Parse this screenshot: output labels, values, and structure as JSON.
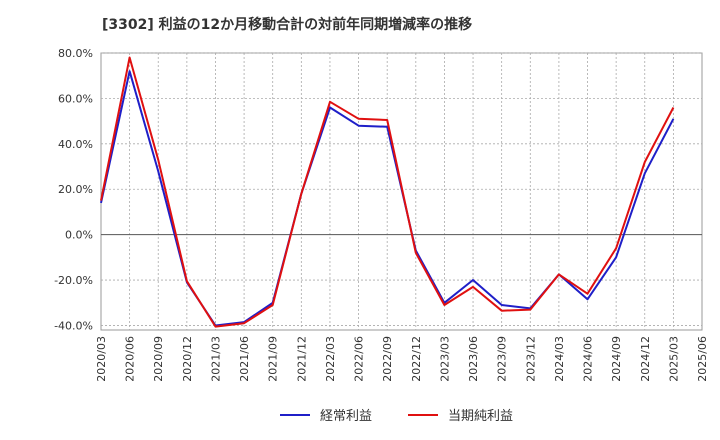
{
  "chart_data": {
    "type": "line",
    "title": "[3302]  利益の12か月移動合計の対前年同期増減率の推移",
    "xlabel": "",
    "ylabel": "",
    "ylim": [
      -42,
      80
    ],
    "yticks": [
      80,
      60,
      40,
      20,
      0,
      -20,
      -40
    ],
    "ytick_labels": [
      "80.0%",
      "60.0%",
      "40.0%",
      "20.0%",
      "0.0%",
      "-20.0%",
      "-40.0%"
    ],
    "categories": [
      "2020/03",
      "2020/06",
      "2020/09",
      "2020/12",
      "2021/03",
      "2021/06",
      "2021/09",
      "2021/12",
      "2022/03",
      "2022/06",
      "2022/09",
      "2022/12",
      "2023/03",
      "2023/06",
      "2023/09",
      "2023/12",
      "2024/03",
      "2024/06",
      "2024/09",
      "2024/12",
      "2025/03",
      "2025/06"
    ],
    "grid": true,
    "legend_position": "bottom-center",
    "series": [
      {
        "name": "経常利益",
        "color": "#1f1fc8",
        "values": [
          14,
          72,
          28,
          -21,
          -40,
          -38.5,
          -30,
          18,
          56,
          48,
          47.5,
          -7,
          -30,
          -20,
          -31,
          -32.5,
          -17.5,
          -28.5,
          -10,
          27,
          51,
          null
        ]
      },
      {
        "name": "当期純利益",
        "color": "#e01010",
        "values": [
          15,
          78,
          33,
          -20.5,
          -40.5,
          -39,
          -31,
          18,
          58.5,
          51,
          50.5,
          -8,
          -31,
          -23,
          -33.5,
          -33,
          -17.5,
          -26,
          -6,
          32,
          56,
          null
        ]
      }
    ]
  }
}
